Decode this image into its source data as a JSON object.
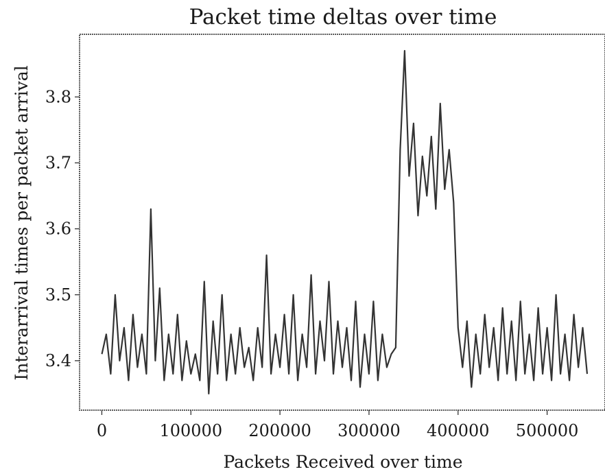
{
  "chart_data": {
    "type": "line",
    "title": "Packet time deltas over time",
    "xlabel": "Packets Received over time",
    "ylabel": "Interarrival times per packet arrival",
    "xlim": [
      -25000,
      565000
    ],
    "ylim": [
      3.325,
      3.895
    ],
    "x_ticks": [
      0,
      100000,
      200000,
      300000,
      400000,
      500000
    ],
    "x_tick_labels": [
      "0",
      "100000",
      "200000",
      "300000",
      "400000",
      "500000"
    ],
    "y_ticks": [
      3.4,
      3.5,
      3.6,
      3.7,
      3.8
    ],
    "y_tick_labels": [
      "3.4",
      "3.5",
      "3.6",
      "3.7",
      "3.8"
    ],
    "grid": false,
    "line_color": "#333333",
    "series": [
      {
        "x": [
          0,
          5000,
          10000,
          15000,
          20000,
          25000,
          30000,
          35000,
          40000,
          45000,
          50000,
          55000,
          60000,
          65000,
          70000,
          75000,
          80000,
          85000,
          90000,
          95000,
          100000,
          105000,
          110000,
          115000,
          120000,
          125000,
          130000,
          135000,
          140000,
          145000,
          150000,
          155000,
          160000,
          165000,
          170000,
          175000,
          180000,
          185000,
          190000,
          195000,
          200000,
          205000,
          210000,
          215000,
          220000,
          225000,
          230000,
          235000,
          240000,
          245000,
          250000,
          255000,
          260000,
          265000,
          270000,
          275000,
          280000,
          285000,
          290000,
          295000,
          300000,
          305000,
          310000,
          315000,
          320000,
          325000,
          330000,
          335000,
          340000,
          345000,
          350000,
          355000,
          360000,
          365000,
          370000,
          375000,
          380000,
          385000,
          390000,
          395000,
          400000,
          405000,
          410000,
          415000,
          420000,
          425000,
          430000,
          435000,
          440000,
          445000,
          450000,
          455000,
          460000,
          465000,
          470000,
          475000,
          480000,
          485000,
          490000,
          495000,
          500000,
          505000,
          510000,
          515000,
          520000,
          525000,
          530000,
          535000,
          540000,
          545000
        ],
        "y": [
          3.41,
          3.44,
          3.38,
          3.5,
          3.4,
          3.45,
          3.37,
          3.47,
          3.39,
          3.44,
          3.38,
          3.63,
          3.4,
          3.51,
          3.37,
          3.44,
          3.38,
          3.47,
          3.37,
          3.43,
          3.38,
          3.41,
          3.37,
          3.52,
          3.35,
          3.46,
          3.38,
          3.5,
          3.37,
          3.44,
          3.38,
          3.45,
          3.39,
          3.42,
          3.37,
          3.45,
          3.39,
          3.56,
          3.38,
          3.44,
          3.39,
          3.47,
          3.38,
          3.5,
          3.37,
          3.44,
          3.39,
          3.53,
          3.38,
          3.46,
          3.4,
          3.52,
          3.38,
          3.46,
          3.39,
          3.45,
          3.37,
          3.49,
          3.36,
          3.44,
          3.38,
          3.49,
          3.37,
          3.44,
          3.39,
          3.41,
          3.42,
          3.72,
          3.87,
          3.68,
          3.76,
          3.62,
          3.71,
          3.65,
          3.74,
          3.63,
          3.79,
          3.66,
          3.72,
          3.64,
          3.45,
          3.39,
          3.46,
          3.36,
          3.44,
          3.38,
          3.47,
          3.39,
          3.45,
          3.37,
          3.48,
          3.38,
          3.46,
          3.37,
          3.49,
          3.38,
          3.44,
          3.37,
          3.48,
          3.38,
          3.45,
          3.37,
          3.5,
          3.38,
          3.44,
          3.37,
          3.47,
          3.39,
          3.45,
          3.38
        ]
      }
    ]
  }
}
